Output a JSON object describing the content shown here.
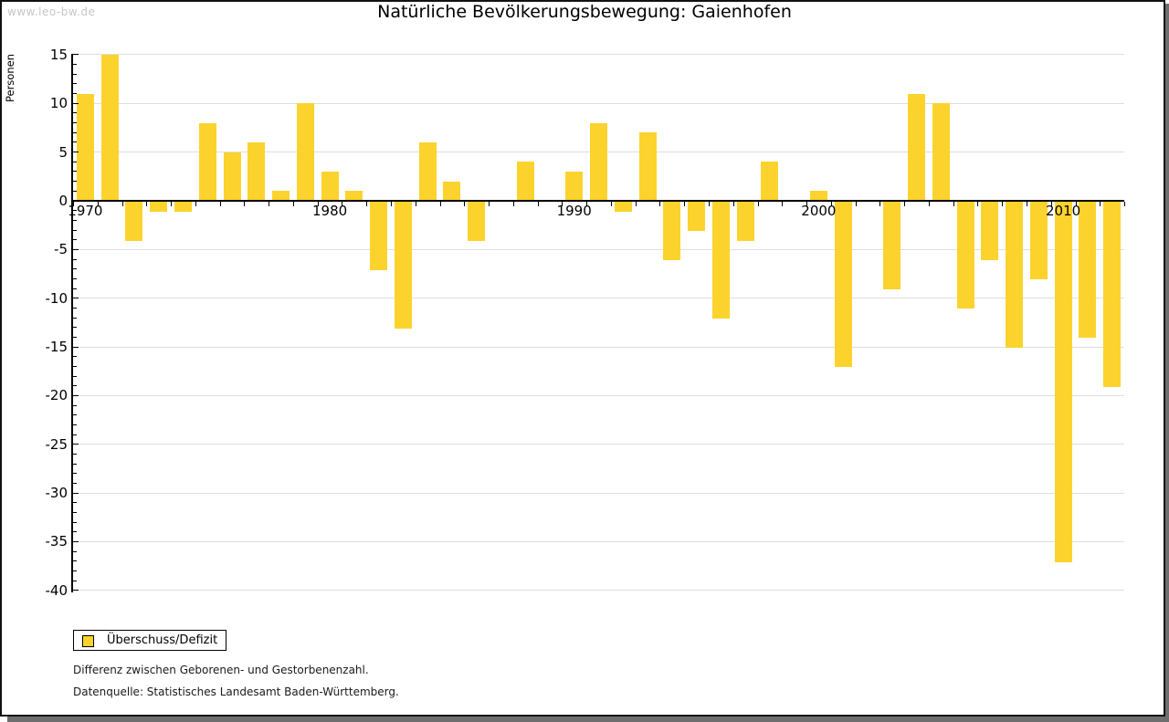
{
  "watermark": "www.leo-bw.de",
  "title": "Natürliche Bevölkerungsbewegung: Gaienhofen",
  "y_axis_label": "Personen",
  "legend": {
    "label": "Überschuss/Defizit"
  },
  "footnotes": {
    "line1": "Differenz zwischen Geborenen- und Gestorbenenzahl.",
    "line2": "Datenquelle: Statistisches Landesamt Baden-Württemberg."
  },
  "colors": {
    "bar": "#FCD32D",
    "grid": "#DEDEDE",
    "axis": "#000000",
    "watermark": "#C6C6C6",
    "shadow": "#6E6E6E"
  },
  "chart_data": {
    "type": "bar",
    "title": "Natürliche Bevölkerungsbewegung: Gaienhofen",
    "xlabel": "",
    "ylabel": "Personen",
    "legend_label": "Überschuss/Defizit",
    "legend_position": "bottom-left",
    "grid": true,
    "ylim": [
      -40,
      15
    ],
    "y_ticks": [
      15,
      10,
      5,
      0,
      -5,
      -10,
      -15,
      -20,
      -25,
      -30,
      -35,
      -40
    ],
    "x_tick_labels": [
      1970,
      1980,
      1990,
      2000,
      2010
    ],
    "categories": [
      1970,
      1971,
      1972,
      1973,
      1974,
      1975,
      1976,
      1977,
      1978,
      1979,
      1980,
      1981,
      1982,
      1983,
      1984,
      1985,
      1986,
      1987,
      1988,
      1989,
      1990,
      1991,
      1992,
      1993,
      1994,
      1995,
      1996,
      1997,
      1998,
      1999,
      2000,
      2001,
      2002,
      2003,
      2004,
      2005,
      2006,
      2007,
      2008,
      2009,
      2010,
      2011,
      2012
    ],
    "values": [
      11,
      15,
      -4,
      -1,
      -1,
      8,
      5,
      6,
      1,
      10,
      3,
      1,
      -7,
      -13,
      6,
      2,
      -4,
      0,
      4,
      0,
      3,
      8,
      -1,
      7,
      -6,
      -3,
      -12,
      -4,
      4,
      0,
      1,
      -17,
      0,
      -9,
      11,
      10,
      -11,
      -6,
      -15,
      -8,
      -37,
      -14,
      -19
    ]
  }
}
